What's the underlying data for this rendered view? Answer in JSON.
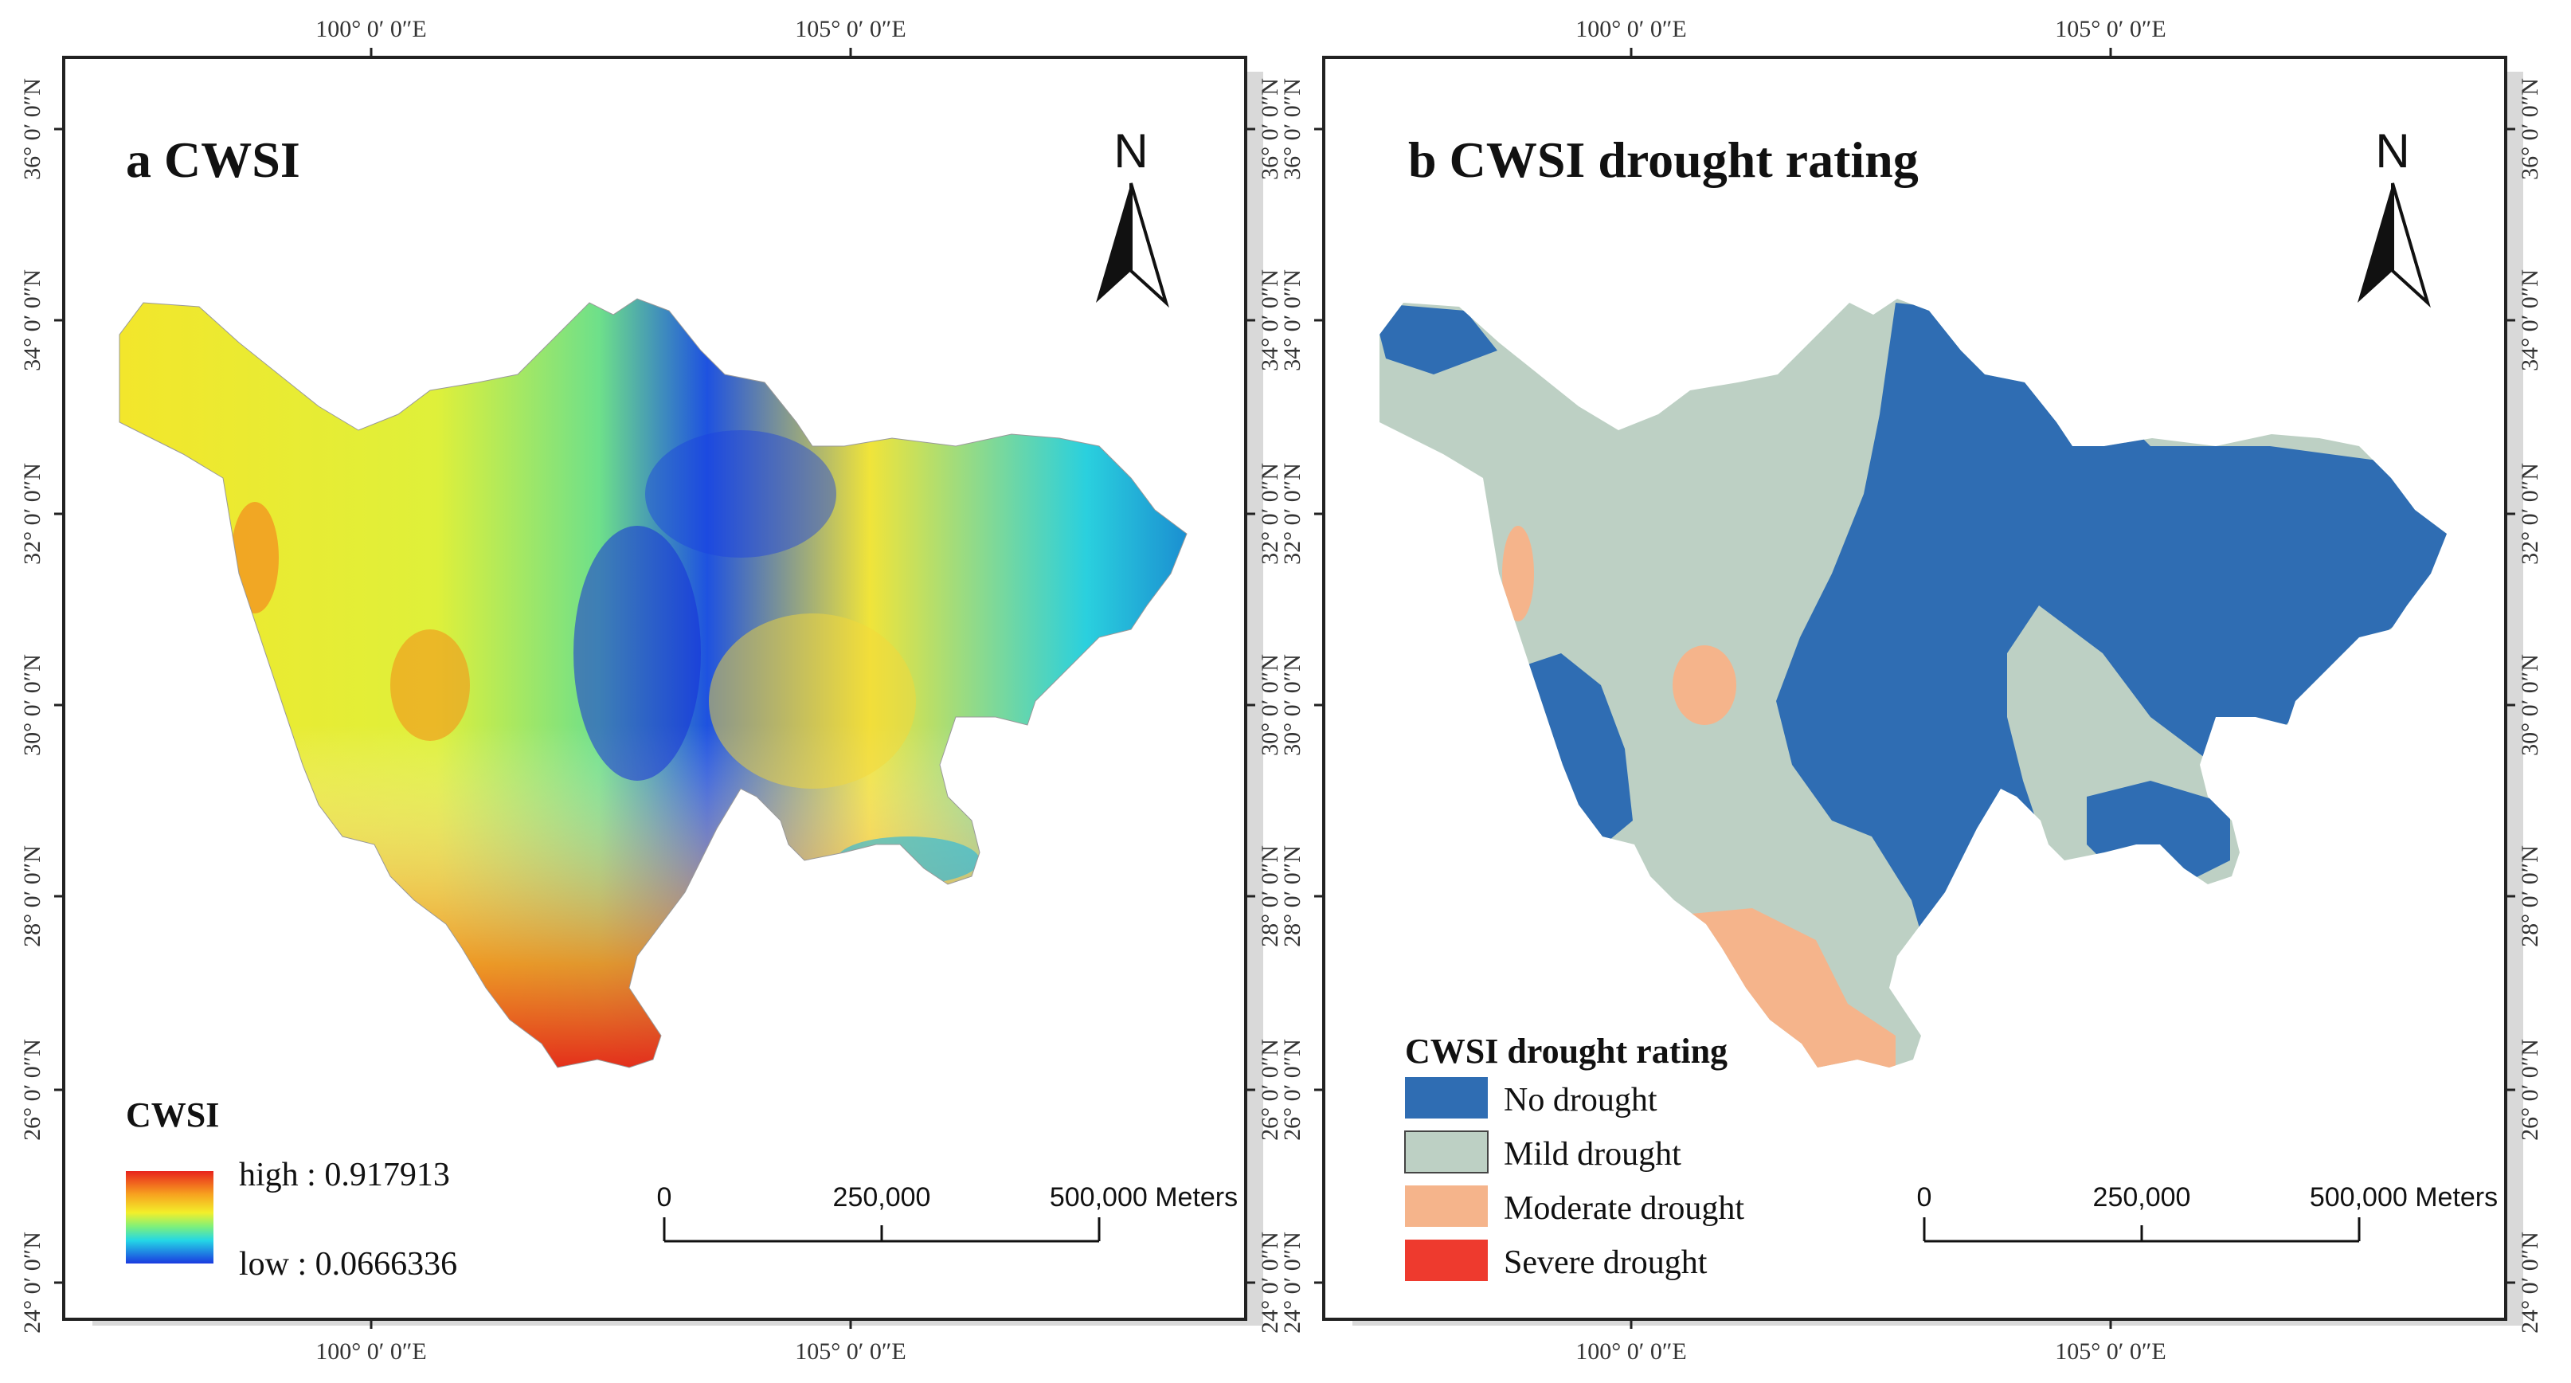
{
  "panels": [
    {
      "title": "a CWSI",
      "legend": {
        "title": "CWSI",
        "high_label": "high : 0.917913",
        "low_label": "low : 0.0666336"
      },
      "scalebar": {
        "zero": "0",
        "mid": "250,000",
        "end": "500,000 Meters"
      },
      "north": "N",
      "lon_labels": [
        "100° 0′ 0″E",
        "105° 0′ 0″E"
      ],
      "lat_labels": [
        "36° 0′ 0″N",
        "34° 0′ 0″N",
        "32° 0′ 0″N",
        "30° 0′ 0″N",
        "28° 0′ 0″N",
        "26° 0′ 0″N",
        "24° 0′ 0″N"
      ]
    },
    {
      "title": "b CWSI drought rating",
      "legend": {
        "title": "CWSI drought rating",
        "items": [
          {
            "label": "No drought",
            "color": "#2f6db3"
          },
          {
            "label": "Mild drought",
            "color": "#bdd0c4"
          },
          {
            "label": "Moderate drought",
            "color": "#f5b48b"
          },
          {
            "label": "Severe drought",
            "color": "#ee3a2e"
          }
        ]
      },
      "scalebar": {
        "zero": "0",
        "mid": "250,000",
        "end": "500,000 Meters"
      },
      "north": "N",
      "lon_labels": [
        "100° 0′ 0″E",
        "105° 0′ 0″E"
      ],
      "lat_labels": [
        "36° 0′ 0″N",
        "34° 0′ 0″N",
        "32° 0′ 0″N",
        "30° 0′ 0″N",
        "28° 0′ 0″N",
        "26° 0′ 0″N",
        "24° 0′ 0″N"
      ]
    }
  ]
}
